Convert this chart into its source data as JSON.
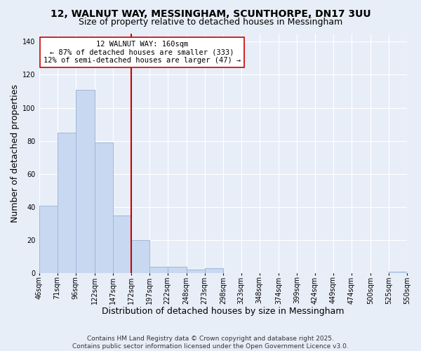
{
  "title1": "12, WALNUT WAY, MESSINGHAM, SCUNTHORPE, DN17 3UU",
  "title2": "Size of property relative to detached houses in Messingham",
  "xlabel": "Distribution of detached houses by size in Messingham",
  "ylabel": "Number of detached properties",
  "bar_color": "#c8d8f0",
  "bar_edge_color": "#a0b8d8",
  "bin_edges": [
    46,
    71,
    96,
    122,
    147,
    172,
    197,
    222,
    248,
    273,
    298,
    323,
    348,
    374,
    399,
    424,
    449,
    474,
    500,
    525,
    550
  ],
  "bin_labels": [
    "46sqm",
    "71sqm",
    "96sqm",
    "122sqm",
    "147sqm",
    "172sqm",
    "197sqm",
    "222sqm",
    "248sqm",
    "273sqm",
    "298sqm",
    "323sqm",
    "348sqm",
    "374sqm",
    "399sqm",
    "424sqm",
    "449sqm",
    "474sqm",
    "500sqm",
    "525sqm",
    "550sqm"
  ],
  "counts": [
    41,
    85,
    111,
    79,
    35,
    20,
    4,
    4,
    2,
    3,
    0,
    0,
    0,
    0,
    0,
    0,
    0,
    0,
    0,
    1
  ],
  "vline_x": 172,
  "annotation_title": "12 WALNUT WAY: 160sqm",
  "annotation_line1": "← 87% of detached houses are smaller (333)",
  "annotation_line2": "12% of semi-detached houses are larger (47) →",
  "ylim": [
    0,
    145
  ],
  "yticks": [
    0,
    20,
    40,
    60,
    80,
    100,
    120,
    140
  ],
  "footer1": "Contains HM Land Registry data © Crown copyright and database right 2025.",
  "footer2": "Contains public sector information licensed under the Open Government Licence v3.0.",
  "background_color": "#e8eef8",
  "plot_bg_color": "#e8eef8",
  "grid_color": "#ffffff",
  "vline_color": "#cc0000",
  "ann_box_color": "#cc0000",
  "title_fontsize": 10,
  "subtitle_fontsize": 9,
  "axis_label_fontsize": 9,
  "tick_fontsize": 7,
  "annotation_fontsize": 7.5,
  "footer_fontsize": 6.5
}
